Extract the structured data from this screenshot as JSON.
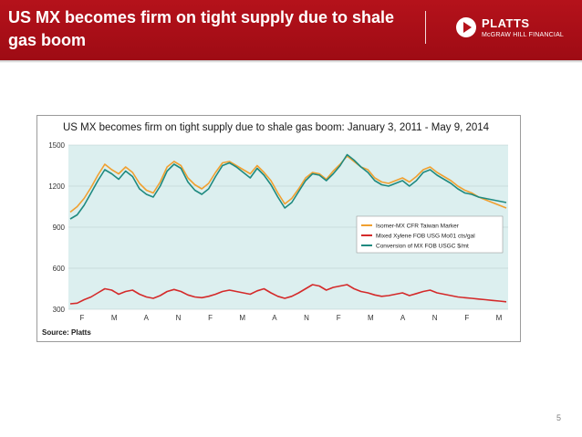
{
  "slide": {
    "title": "US MX becomes firm on tight supply due to shale gas boom",
    "page_number": "5"
  },
  "logo": {
    "name": "PLATTS",
    "subtitle": "McGRAW HILL FINANCIAL",
    "icon": "play-triangle-icon"
  },
  "colors": {
    "header": "#b5121b",
    "plot_bg": "#dcefef",
    "isomer": "#f0a030",
    "mixed": "#d42a2a",
    "conversion": "#1f8a80"
  },
  "chart_data": {
    "type": "line",
    "title": "US MX becomes firm on tight supply due to shale gas boom: January 3, 2011 - May 9, 2014",
    "source": "Source: Platts",
    "xlabel": "",
    "ylabel": "",
    "ylim": [
      300,
      1500
    ],
    "yticks": [
      "1500",
      "1200",
      "900",
      "600",
      "300"
    ],
    "xticks": [
      "F",
      "M",
      "A",
      "N",
      "F",
      "M",
      "A",
      "N",
      "F",
      "M",
      "A",
      "N",
      "F",
      "M"
    ],
    "legend_position": "right",
    "grid": true,
    "series": [
      {
        "name": "Isomer-MX CFR Taiwan Marker",
        "values": [
          1010,
          1050,
          1110,
          1190,
          1280,
          1360,
          1320,
          1290,
          1340,
          1300,
          1220,
          1170,
          1150,
          1230,
          1340,
          1380,
          1350,
          1260,
          1210,
          1180,
          1220,
          1300,
          1370,
          1380,
          1350,
          1320,
          1290,
          1350,
          1300,
          1240,
          1150,
          1070,
          1110,
          1180,
          1260,
          1300,
          1290,
          1250,
          1310,
          1360,
          1420,
          1380,
          1340,
          1320,
          1260,
          1230,
          1220,
          1240,
          1260,
          1230,
          1270,
          1320,
          1340,
          1300,
          1270,
          1240,
          1200,
          1170,
          1150,
          1120,
          1100,
          1080,
          1060,
          1040
        ]
      },
      {
        "name": "Mixed Xylene FOB USG Mo01 cts/gal",
        "values": [
          340,
          345,
          370,
          390,
          420,
          450,
          440,
          410,
          430,
          440,
          410,
          390,
          380,
          400,
          430,
          445,
          430,
          405,
          390,
          385,
          395,
          410,
          430,
          440,
          430,
          420,
          410,
          435,
          450,
          420,
          395,
          380,
          395,
          420,
          450,
          480,
          470,
          440,
          460,
          470,
          480,
          450,
          430,
          420,
          405,
          395,
          400,
          410,
          420,
          400,
          415,
          430,
          440,
          420,
          410,
          400,
          390,
          385,
          380,
          375,
          370,
          365,
          360,
          355
        ]
      },
      {
        "name": "Conversion of MX FOB USGC $/mt",
        "values": [
          960,
          990,
          1060,
          1150,
          1240,
          1320,
          1290,
          1250,
          1310,
          1270,
          1180,
          1140,
          1120,
          1200,
          1310,
          1360,
          1330,
          1230,
          1170,
          1140,
          1180,
          1270,
          1350,
          1370,
          1340,
          1300,
          1260,
          1330,
          1280,
          1210,
          1120,
          1040,
          1080,
          1160,
          1240,
          1290,
          1280,
          1240,
          1290,
          1350,
          1430,
          1390,
          1340,
          1300,
          1240,
          1210,
          1200,
          1220,
          1240,
          1200,
          1240,
          1300,
          1320,
          1280,
          1250,
          1220,
          1180,
          1150,
          1140,
          1120,
          1110,
          1100,
          1090,
          1080
        ]
      }
    ]
  }
}
